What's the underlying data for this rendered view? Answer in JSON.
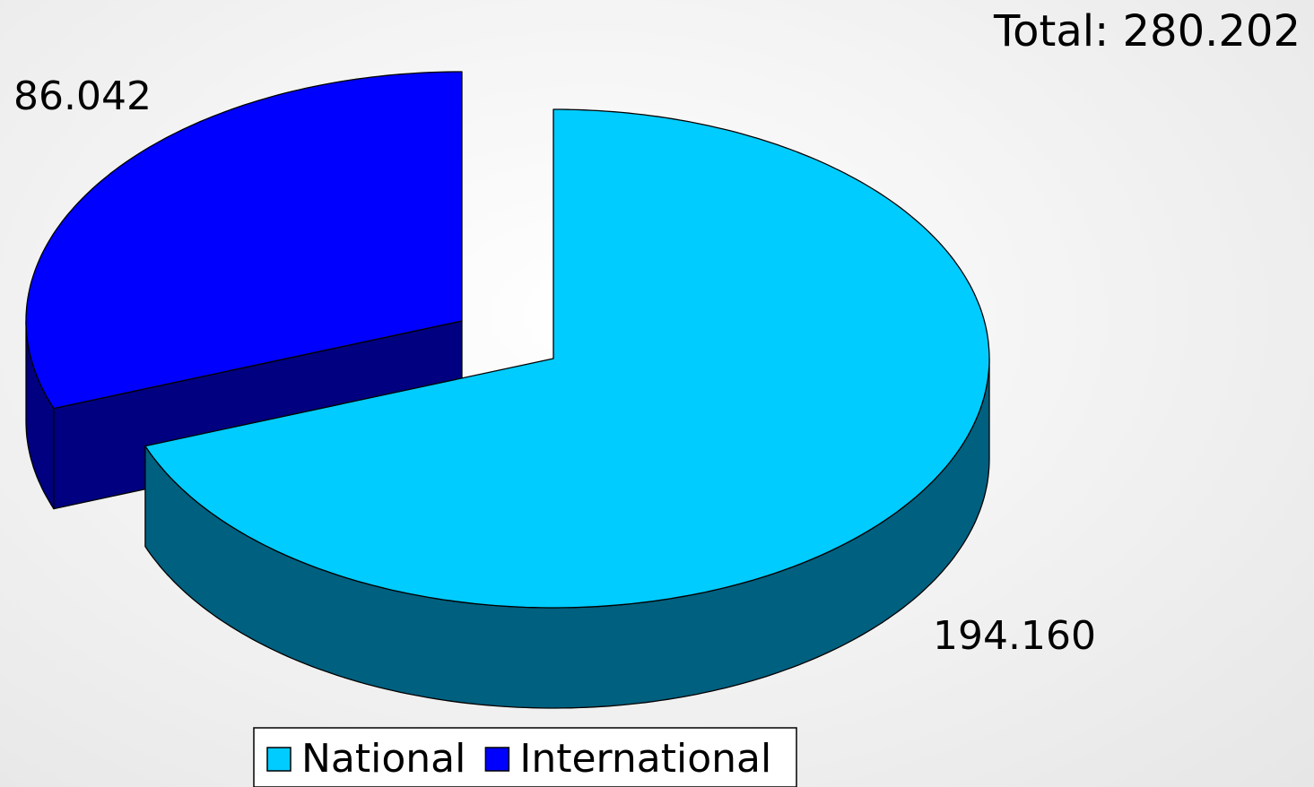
{
  "chart_data": {
    "type": "pie3d",
    "title": "Total: 280.202",
    "categories": [
      "National",
      "International"
    ],
    "values": [
      194160,
      86042
    ],
    "value_labels": [
      "194.160",
      "86.042"
    ],
    "colors": [
      "#00ccff",
      "#0000ff"
    ],
    "side_colors": [
      "#00607f",
      "#000080"
    ],
    "legend": "bottom"
  }
}
